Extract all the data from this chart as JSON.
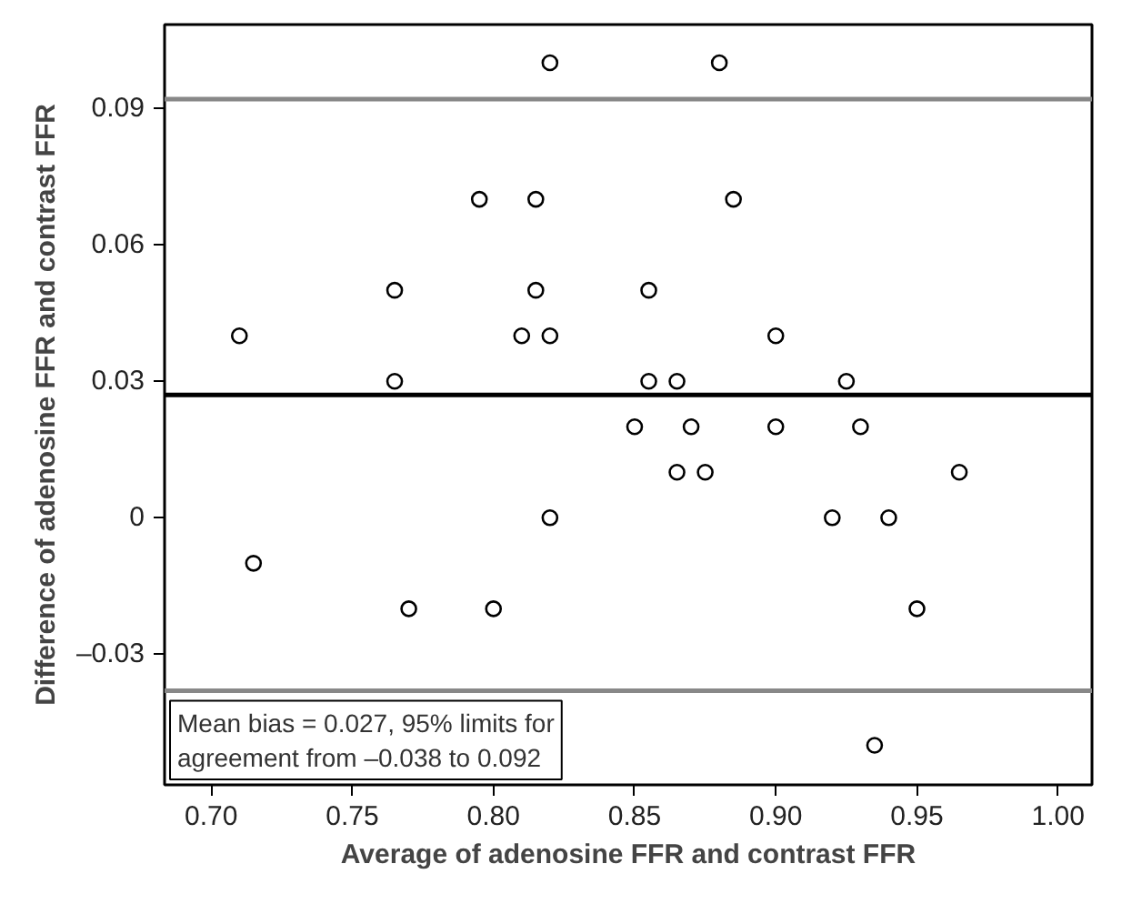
{
  "chart_data": {
    "type": "scatter",
    "xlabel": "Average of adenosine FFR and contrast FFR",
    "ylabel": "Difference of adenosine FFR and contrast FFR",
    "series": [
      {
        "color": "#000000",
        "marker": "circle",
        "x": [
          0.71,
          0.715,
          0.765,
          0.765,
          0.77,
          0.795,
          0.8,
          0.81,
          0.815,
          0.815,
          0.82,
          0.82,
          0.82,
          0.85,
          0.855,
          0.855,
          0.865,
          0.865,
          0.87,
          0.875,
          0.88,
          0.885,
          0.9,
          0.9,
          0.92,
          0.925,
          0.93,
          0.935,
          0.94,
          0.95,
          0.965
        ],
        "values": [
          0.04,
          -0.01,
          0.05,
          0.03,
          -0.02,
          0.07,
          -0.02,
          0.04,
          0.07,
          0.05,
          0.1,
          0.04,
          0.0,
          0.02,
          0.05,
          0.03,
          0.03,
          0.01,
          0.02,
          0.01,
          0.1,
          0.07,
          0.04,
          0.02,
          0.0,
          0.03,
          0.02,
          -0.05,
          0.0,
          -0.02,
          0.01
        ]
      }
    ],
    "xlim": [
      0.6835,
      1.012
    ],
    "ylim": [
      -0.0587,
      0.1084
    ],
    "xticks": [
      {
        "value": 0.7,
        "label": "0.70"
      },
      {
        "value": 0.75,
        "label": "0.75"
      },
      {
        "value": 0.8,
        "label": "0.80"
      },
      {
        "value": 0.85,
        "label": "0.85"
      },
      {
        "value": 0.9,
        "label": "0.90"
      },
      {
        "value": 0.95,
        "label": "0.95"
      },
      {
        "value": 1.0,
        "label": "1.00"
      }
    ],
    "yticks": [
      {
        "value": -0.03,
        "label": "–0.03"
      },
      0,
      0.03,
      0.06,
      0.09
    ],
    "ref_lines": [
      {
        "axis": "y",
        "value": 0.027,
        "color": "#000000"
      },
      {
        "axis": "y",
        "value": 0.092,
        "color": "#888888"
      },
      {
        "axis": "y",
        "value": -0.038,
        "color": "#888888"
      }
    ],
    "annotations": [
      "Mean bias = 0.027, 95% limits for\nagreement from –0.038 to 0.092"
    ],
    "grid": false
  }
}
